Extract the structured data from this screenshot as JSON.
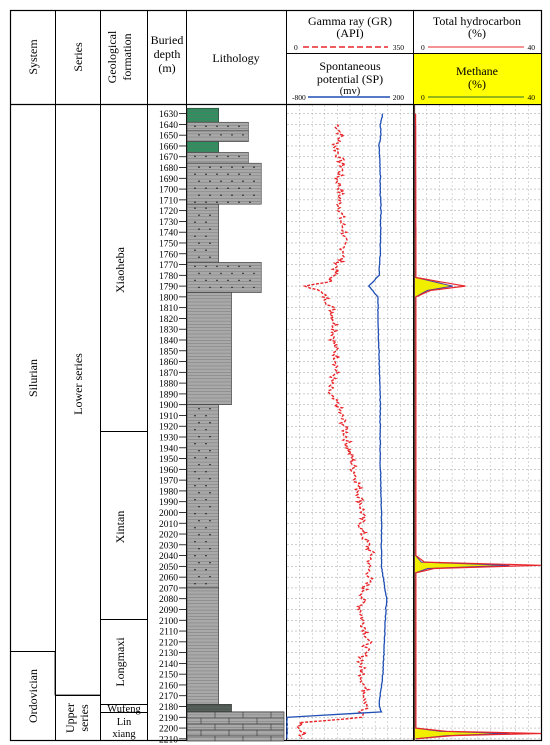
{
  "headers": {
    "system": "System",
    "series": "Series",
    "formation_line1": "Geological",
    "formation_line2": "formation",
    "depth_line1": "Buried",
    "depth_line2": "depth",
    "depth_line3": "(m)",
    "lithology": "Lithology",
    "gr_line1": "Gamma ray (GR)",
    "gr_line2": "(API)",
    "gr_min": "0",
    "gr_max": "350",
    "sp_line1": "Spontaneous",
    "sp_line2": "potential (SP)",
    "sp_unit": "(mv)",
    "sp_min": "-800",
    "sp_max": "200",
    "th_line1": "Total hydrocarbon",
    "th_line2": "(%)",
    "th_min": "0",
    "th_max": "40",
    "methane_line1": "Methane",
    "methane_line2": "(%)",
    "methane_min": "0",
    "methane_max": "40"
  },
  "stratigraphy": {
    "systems": [
      "Silurian",
      "Ordovician"
    ],
    "series": [
      "Lower series",
      "Upper series"
    ],
    "series_upper_line1": "Upper",
    "series_upper_line2": "series",
    "formations": [
      "Xiaoheba",
      "Xintan",
      "Longmaxi",
      "Wufeng",
      "Linxiang"
    ],
    "linxiang_line1": "Lin",
    "linxiang_line2": "xiang"
  },
  "depths": [
    1630,
    1640,
    1650,
    1660,
    1670,
    1680,
    1690,
    1700,
    1710,
    1720,
    1730,
    1740,
    1750,
    1760,
    1770,
    1780,
    1790,
    1800,
    1810,
    1820,
    1830,
    1840,
    1850,
    1860,
    1870,
    1880,
    1890,
    1900,
    1910,
    1920,
    1930,
    1940,
    1950,
    1960,
    1970,
    1980,
    1990,
    2000,
    2010,
    2020,
    2030,
    2040,
    2050,
    2060,
    2070,
    2080,
    2090,
    2100,
    2110,
    2120,
    2130,
    2140,
    2150,
    2160,
    2170,
    2180,
    2190,
    2200,
    2210
  ],
  "colors": {
    "gr": "#e8262b",
    "sp": "#1f4fb4",
    "th": "#e8262b",
    "methane_fill": "#f2ee00",
    "methane_line": "#4a3f9a",
    "header_highlight": "#ffff00",
    "green_lith": "#2f8f5e",
    "gray_lith": "#a9a9a9"
  },
  "chart_data": {
    "type": "line",
    "ylabel": "Buried depth (m)",
    "ylim": [
      1622,
      2212
    ],
    "series": [
      {
        "name": "Gamma ray (GR)",
        "unit": "API",
        "xlim": [
          0,
          350
        ],
        "depth": [
          1640,
          1650,
          1660,
          1670,
          1680,
          1690,
          1700,
          1710,
          1720,
          1730,
          1740,
          1750,
          1760,
          1770,
          1780,
          1785,
          1790,
          1795,
          1800,
          1810,
          1820,
          1830,
          1840,
          1850,
          1860,
          1870,
          1880,
          1890,
          1900,
          1910,
          1920,
          1930,
          1940,
          1950,
          1960,
          1970,
          1980,
          1990,
          2000,
          2010,
          2020,
          2030,
          2040,
          2050,
          2060,
          2070,
          2080,
          2090,
          2100,
          2110,
          2120,
          2130,
          2140,
          2150,
          2160,
          2170,
          2180,
          2185,
          2190,
          2195,
          2200,
          2205,
          2210
        ],
        "values": [
          140,
          150,
          135,
          145,
          155,
          140,
          150,
          145,
          150,
          150,
          160,
          155,
          160,
          140,
          130,
          120,
          60,
          90,
          105,
          125,
          130,
          135,
          130,
          135,
          140,
          135,
          120,
          115,
          140,
          150,
          160,
          165,
          170,
          180,
          185,
          195,
          200,
          205,
          210,
          205,
          210,
          225,
          235,
          225,
          230,
          215,
          210,
          205,
          210,
          220,
          225,
          215,
          205,
          210,
          215,
          220,
          225,
          200,
          210,
          40,
          30,
          45,
          40
        ]
      },
      {
        "name": "Spontaneous potential (SP)",
        "unit": "mv",
        "xlim": [
          -800,
          200
        ],
        "depth": [
          1630,
          1640,
          1650,
          1660,
          1670,
          1680,
          1700,
          1720,
          1760,
          1780,
          1790,
          1800,
          1850,
          1900,
          1950,
          2000,
          2050,
          2080,
          2100,
          2130,
          2150,
          2170,
          2180,
          2185,
          2190,
          2200,
          2210
        ],
        "values": [
          -40,
          -60,
          -55,
          -70,
          -65,
          -60,
          -60,
          -55,
          -60,
          -70,
          -150,
          -80,
          -70,
          -60,
          -60,
          -50,
          -50,
          -10,
          -20,
          -30,
          -40,
          -60,
          -70,
          -50,
          -800,
          -800,
          -800
        ]
      },
      {
        "name": "Total hydrocarbon",
        "unit": "%",
        "xlim": [
          0,
          40
        ],
        "depth": [
          1630,
          1782,
          1786,
          1790,
          1794,
          1800,
          2040,
          2046,
          2049,
          2052,
          2056,
          2200,
          2203,
          2205,
          2207,
          2210
        ],
        "values": [
          0.2,
          0.3,
          8,
          16,
          5,
          0.3,
          0.3,
          3,
          40,
          6,
          0.3,
          0.3,
          10,
          40,
          12,
          0.5
        ]
      },
      {
        "name": "Methane",
        "unit": "%",
        "xlim": [
          0,
          40
        ],
        "depth": [
          1630,
          1782,
          1786,
          1790,
          1794,
          1800,
          2040,
          2046,
          2049,
          2052,
          2056,
          2200,
          2203,
          2205,
          2207,
          2210
        ],
        "values": [
          0.1,
          0.2,
          6,
          12,
          4,
          0.2,
          0.2,
          2,
          30,
          4,
          0.2,
          0.2,
          8,
          30,
          10,
          0.3
        ]
      }
    ]
  }
}
